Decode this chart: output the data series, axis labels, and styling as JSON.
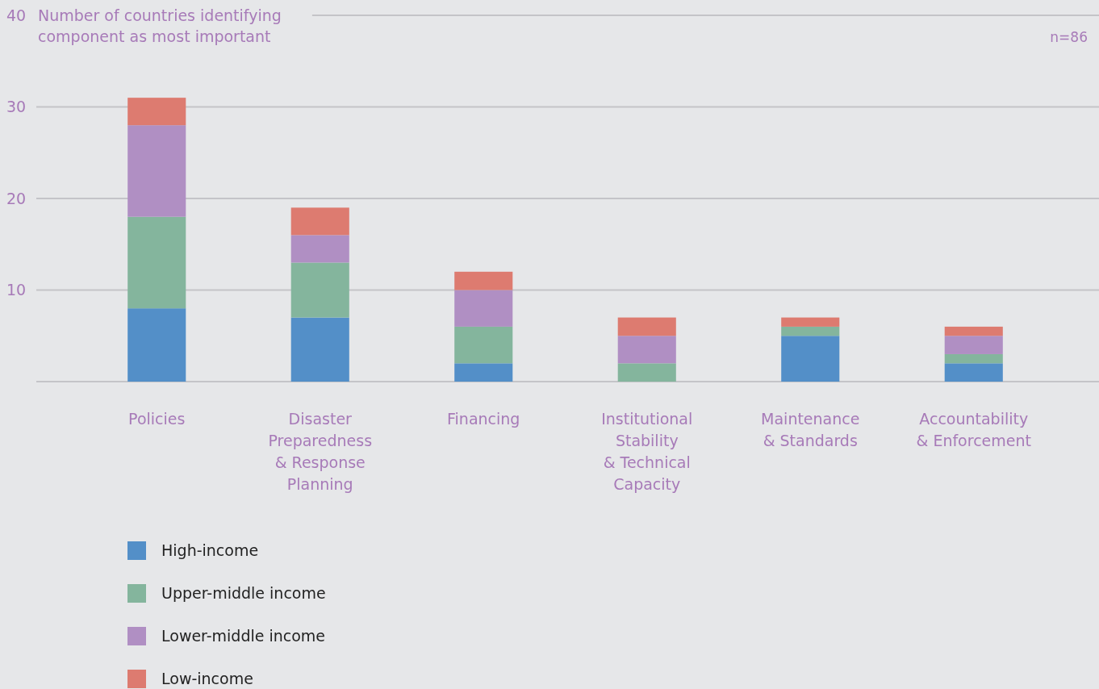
{
  "chart_data": {
    "type": "bar",
    "stacked": true,
    "ylabel": "Number of countries identifying component as most important",
    "categories": [
      "Policies",
      "Disaster Preparedness & Response Planning",
      "Financing",
      "Institutional Stability & Technical Capacity",
      "Maintenance & Standards",
      "Accountability & Enforcement"
    ],
    "series": [
      {
        "name": "High-income",
        "color": "#538fc8",
        "values": [
          8,
          7,
          2,
          0,
          5,
          2
        ]
      },
      {
        "name": "Upper-middle income",
        "color": "#84b59d",
        "values": [
          10,
          6,
          4,
          2,
          1,
          1
        ]
      },
      {
        "name": "Lower-middle income",
        "color": "#b08fc3",
        "values": [
          10,
          3,
          4,
          3,
          0,
          2
        ]
      },
      {
        "name": "Low-income",
        "color": "#dd7b70",
        "values": [
          3,
          3,
          2,
          2,
          1,
          1
        ]
      }
    ],
    "ylim": [
      0,
      40
    ],
    "yticks": [
      {
        "value": 0,
        "label": null
      },
      10,
      20,
      30,
      40
    ],
    "grid": "y",
    "legend": "bottom left",
    "annotations": [
      "n=86"
    ]
  }
}
